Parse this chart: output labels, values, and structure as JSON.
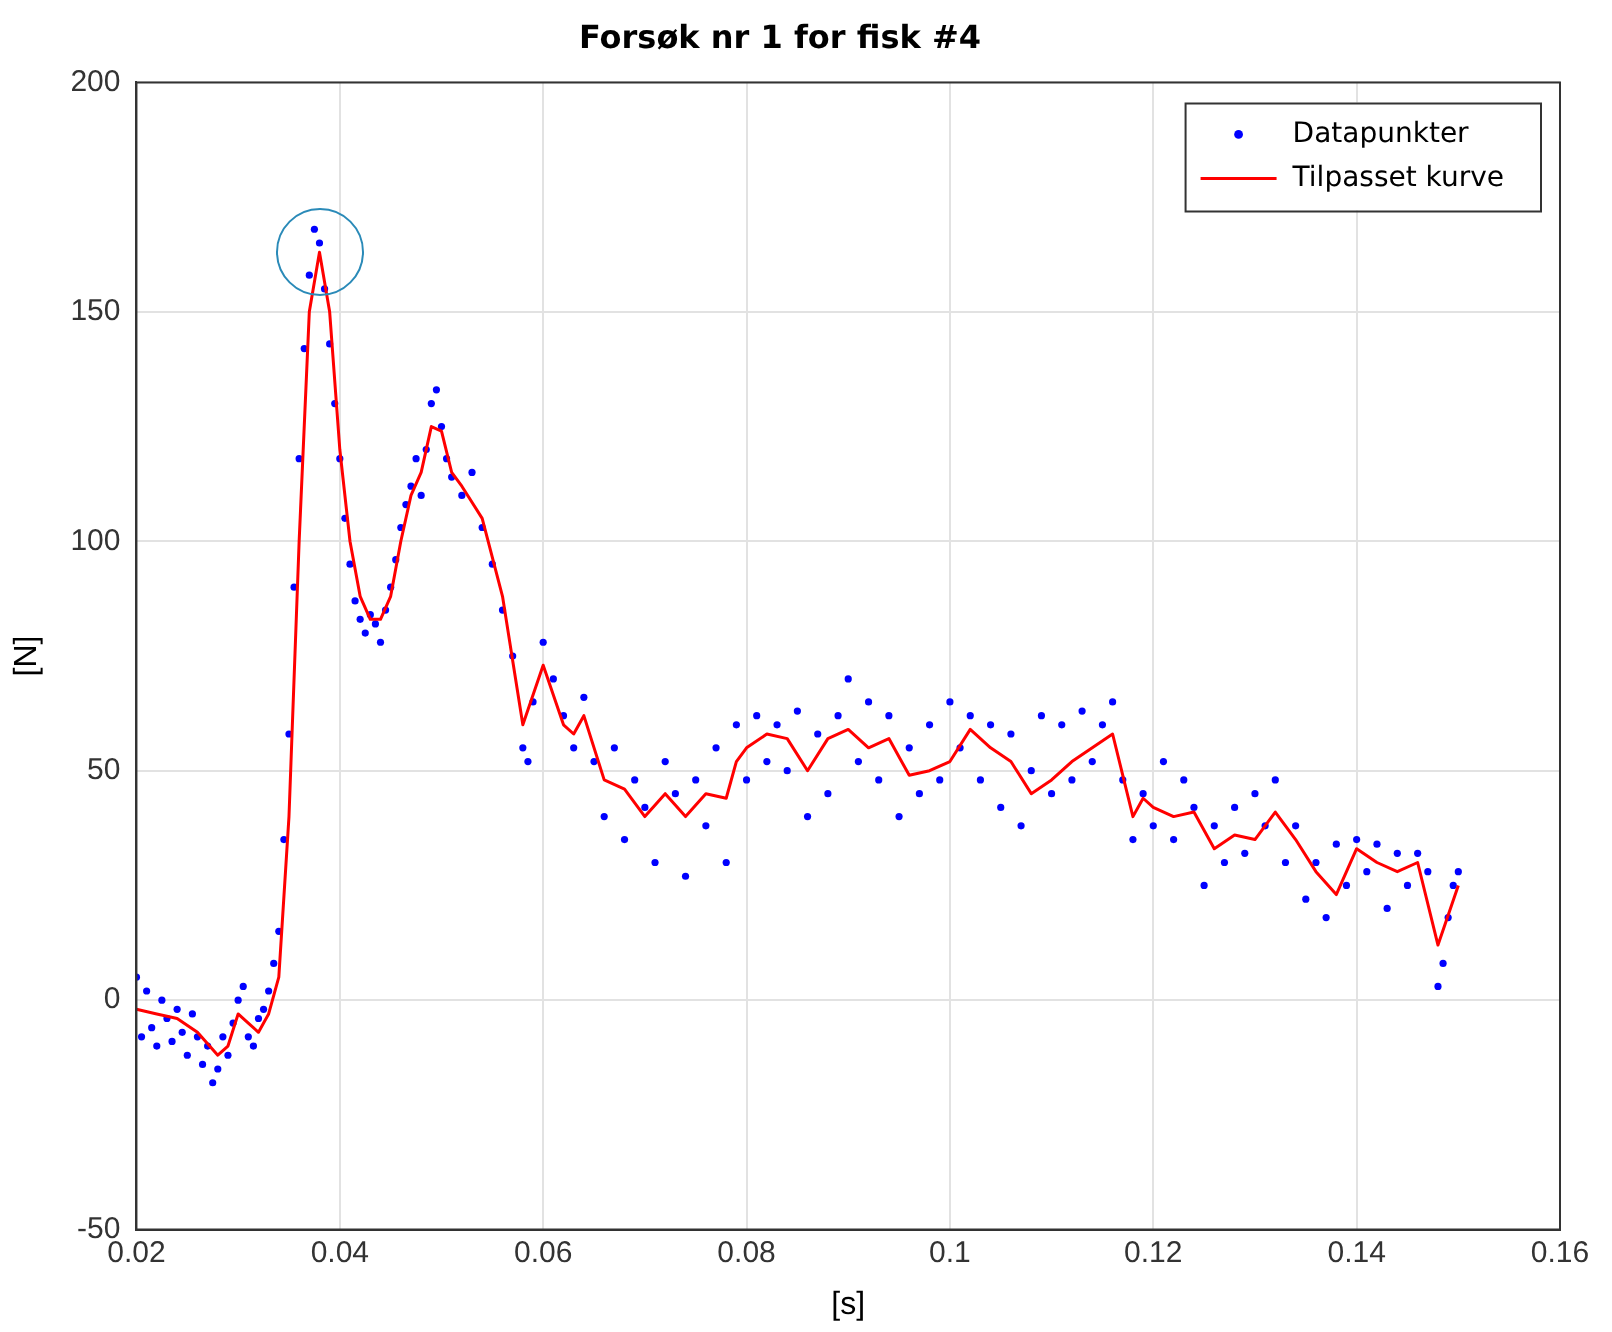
{
  "chart_data": {
    "type": "scatter",
    "title": "Forsøk nr 1 for fisk #4",
    "xlabel": "[s]",
    "ylabel": "[N]",
    "xlim": [
      0.02,
      0.16
    ],
    "xticks": [
      0.02,
      0.04,
      0.06,
      0.08,
      0.1,
      0.12,
      0.14,
      0.16
    ],
    "ylim": [
      -50,
      200
    ],
    "yticks": [
      -50,
      0,
      50,
      100,
      150,
      200
    ],
    "grid": true,
    "legend": "top right",
    "series": [
      {
        "name": "Datapunkter",
        "color": "#0000ff",
        "marker": "circle",
        "x": [
          0.02,
          0.0205,
          0.021,
          0.0215,
          0.022,
          0.0225,
          0.023,
          0.0235,
          0.024,
          0.0245,
          0.025,
          0.0255,
          0.026,
          0.0265,
          0.027,
          0.0275,
          0.028,
          0.0285,
          0.029,
          0.0295,
          0.03,
          0.0305,
          0.031,
          0.0315,
          0.032,
          0.0325,
          0.033,
          0.0335,
          0.034,
          0.0345,
          0.035,
          0.0355,
          0.036,
          0.0365,
          0.037,
          0.0375,
          0.038,
          0.0385,
          0.039,
          0.0395,
          0.04,
          0.0405,
          0.041,
          0.0415,
          0.042,
          0.0425,
          0.043,
          0.0435,
          0.044,
          0.0445,
          0.045,
          0.0455,
          0.046,
          0.0465,
          0.047,
          0.0475,
          0.048,
          0.0485,
          0.049,
          0.0495,
          0.05,
          0.0505,
          0.051,
          0.052,
          0.053,
          0.054,
          0.055,
          0.056,
          0.057,
          0.058,
          0.0585,
          0.059,
          0.06,
          0.061,
          0.062,
          0.063,
          0.064,
          0.065,
          0.066,
          0.067,
          0.068,
          0.069,
          0.07,
          0.071,
          0.072,
          0.073,
          0.074,
          0.075,
          0.076,
          0.077,
          0.078,
          0.079,
          0.08,
          0.081,
          0.082,
          0.083,
          0.084,
          0.085,
          0.086,
          0.087,
          0.088,
          0.089,
          0.09,
          0.091,
          0.092,
          0.093,
          0.094,
          0.095,
          0.096,
          0.097,
          0.098,
          0.099,
          0.1,
          0.101,
          0.102,
          0.103,
          0.104,
          0.105,
          0.106,
          0.107,
          0.108,
          0.109,
          0.11,
          0.111,
          0.112,
          0.113,
          0.114,
          0.115,
          0.116,
          0.117,
          0.118,
          0.119,
          0.12,
          0.121,
          0.122,
          0.123,
          0.124,
          0.125,
          0.126,
          0.127,
          0.128,
          0.129,
          0.13,
          0.131,
          0.132,
          0.133,
          0.134,
          0.135,
          0.136,
          0.137,
          0.138,
          0.139,
          0.14,
          0.141,
          0.142,
          0.143,
          0.144,
          0.145,
          0.146,
          0.147,
          0.148,
          0.1485,
          0.149,
          0.1495,
          0.15
        ],
        "values": [
          5,
          -8,
          2,
          -6,
          -10,
          0,
          -4,
          -9,
          -2,
          -7,
          -12,
          -3,
          -8,
          -14,
          -10,
          -18,
          -15,
          -8,
          -12,
          -5,
          0,
          3,
          -8,
          -10,
          -4,
          -2,
          2,
          8,
          15,
          35,
          58,
          90,
          118,
          142,
          158,
          168,
          165,
          155,
          143,
          130,
          118,
          105,
          95,
          87,
          83,
          80,
          84,
          82,
          78,
          85,
          90,
          96,
          103,
          108,
          112,
          118,
          110,
          120,
          130,
          133,
          125,
          118,
          114,
          110,
          115,
          103,
          95,
          85,
          75,
          55,
          52,
          65,
          78,
          70,
          62,
          55,
          66,
          52,
          40,
          55,
          35,
          48,
          42,
          30,
          52,
          45,
          27,
          48,
          38,
          55,
          30,
          60,
          48,
          62,
          52,
          60,
          50,
          63,
          40,
          58,
          45,
          62,
          70,
          52,
          65,
          48,
          62,
          40,
          55,
          45,
          60,
          48,
          65,
          55,
          62,
          48,
          60,
          42,
          58,
          38,
          50,
          62,
          45,
          60,
          48,
          63,
          52,
          60,
          65,
          48,
          35,
          45,
          38,
          52,
          35,
          48,
          42,
          25,
          38,
          30,
          42,
          32,
          45,
          38,
          48,
          30,
          38,
          22,
          30,
          18,
          34,
          25,
          35,
          28,
          34,
          20,
          32,
          25,
          32,
          28,
          3,
          8,
          18,
          25,
          28
        ]
      },
      {
        "name": "Tilpasset kurve",
        "type": "line",
        "color": "#ff0000",
        "marker": "none",
        "line_style": "solid",
        "x": [
          0.02,
          0.022,
          0.024,
          0.026,
          0.028,
          0.029,
          0.03,
          0.031,
          0.032,
          0.033,
          0.034,
          0.035,
          0.036,
          0.037,
          0.038,
          0.039,
          0.04,
          0.041,
          0.042,
          0.043,
          0.044,
          0.045,
          0.046,
          0.047,
          0.048,
          0.049,
          0.05,
          0.051,
          0.052,
          0.054,
          0.056,
          0.058,
          0.06,
          0.062,
          0.063,
          0.064,
          0.066,
          0.068,
          0.07,
          0.072,
          0.074,
          0.076,
          0.078,
          0.079,
          0.08,
          0.082,
          0.084,
          0.086,
          0.088,
          0.09,
          0.092,
          0.094,
          0.096,
          0.098,
          0.1,
          0.102,
          0.104,
          0.106,
          0.108,
          0.11,
          0.112,
          0.114,
          0.116,
          0.118,
          0.119,
          0.12,
          0.122,
          0.124,
          0.126,
          0.128,
          0.13,
          0.132,
          0.134,
          0.136,
          0.138,
          0.14,
          0.142,
          0.144,
          0.146,
          0.148,
          0.15
        ],
        "values": [
          -2,
          -3,
          -4,
          -7,
          -12,
          -10,
          -3,
          -5,
          -7,
          -3,
          5,
          40,
          100,
          150,
          163,
          150,
          120,
          100,
          88,
          83,
          83,
          88,
          100,
          110,
          115,
          125,
          124,
          115,
          112,
          105,
          88,
          60,
          73,
          60,
          58,
          62,
          48,
          46,
          40,
          45,
          40,
          45,
          44,
          52,
          55,
          58,
          57,
          50,
          57,
          59,
          55,
          57,
          49,
          50,
          52,
          59,
          55,
          52,
          45,
          48,
          52,
          55,
          58,
          40,
          44,
          42,
          40,
          41,
          33,
          36,
          35,
          41,
          35,
          28,
          23,
          33,
          30,
          28,
          30,
          12,
          25
        ]
      }
    ]
  }
}
